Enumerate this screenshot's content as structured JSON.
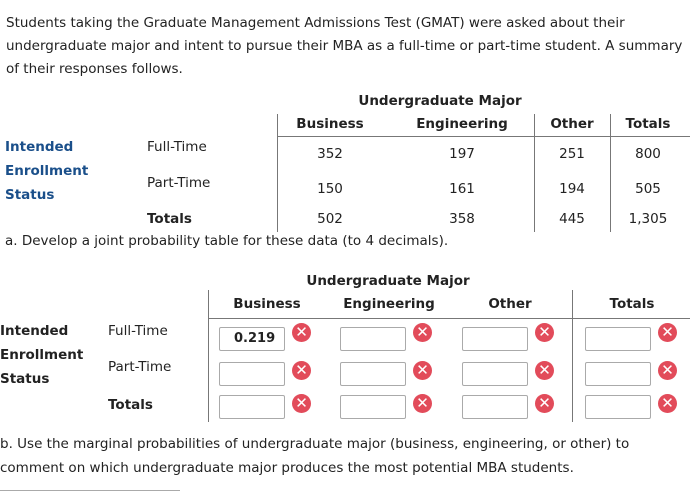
{
  "intro": "Students taking the Graduate Management Admissions Test (GMAT) were asked about their undergraduate major and intent to pursue their MBA as a full-time or part-time student. A summary of their responses follows.",
  "table1": {
    "group_header": "Undergraduate Major",
    "columns": [
      "Business",
      "Engineering",
      "Other",
      "Totals"
    ],
    "row_group": [
      "Intended",
      "Enrollment",
      "Status"
    ],
    "rows": [
      {
        "label": "Full-Time",
        "cells": [
          "352",
          "197",
          "251",
          "800"
        ]
      },
      {
        "label": "Part-Time",
        "cells": [
          "150",
          "161",
          "194",
          "505"
        ]
      },
      {
        "label": "Totals",
        "cells": [
          "502",
          "358",
          "445",
          "1,305"
        ]
      }
    ]
  },
  "part_a": "a. Develop a joint probability table for these data (to 4 decimals).",
  "table2": {
    "group_header": "Undergraduate Major",
    "columns": [
      "Business",
      "Engineering",
      "Other",
      "Totals"
    ],
    "row_group": [
      "Intended",
      "Enrollment",
      "Status"
    ],
    "row_labels": [
      "Full-Time",
      "Part-Time",
      "Totals"
    ],
    "first_input": "0.219"
  },
  "part_b": "b. Use the marginal probabilities of undergraduate major (business, engineering, or other) to comment on which undergraduate major produces the most potential MBA students."
}
